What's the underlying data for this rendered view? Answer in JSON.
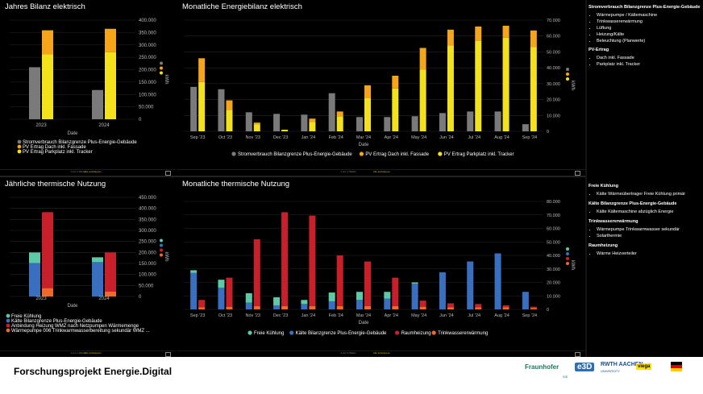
{
  "colors": {
    "grey": "#7a7a7a",
    "orange": "#f5a51a",
    "yellow": "#f3e11b",
    "mint": "#5ec9a7",
    "blue": "#3a6fc0",
    "red": "#c8202a",
    "lorange": "#ef6a28",
    "axis_text": "#bdbdbd",
    "grid": "#262626"
  },
  "footer": {
    "nav": "1 von 1   Weiter      ",
    "link": "Alle ausklappen"
  },
  "chart_data": [
    {
      "id": "jb",
      "type": "bar",
      "title": "Jahres Bilanz elektrisch",
      "categories": [
        "2023",
        "2024"
      ],
      "xlabel": "Date",
      "ylabel": "kWh",
      "ylim": [
        0,
        400000
      ],
      "yticks": [
        "0",
        "50.000",
        "100.000",
        "150.000",
        "200.000",
        "250.000",
        "300.000",
        "350.000",
        "400.000"
      ],
      "grouped": true,
      "groups": [
        {
          "bars": [
            {
              "series": "Stromverbrauch Bilanzgrenze Plus-Energie-Gebäude",
              "color": "grey",
              "values": [
                210000,
                118000
              ]
            }
          ]
        },
        {
          "bars": [
            {
              "series": "PV Ertrag Parkplatz inkl. Tracker",
              "color": "yellow",
              "values": [
                263000,
                271000
              ]
            },
            {
              "series": "PV Ertrag Dach inkl. Fassade",
              "color": "orange",
              "values": [
                96000,
                94000
              ]
            }
          ]
        }
      ],
      "legend": [
        {
          "label": "Stromverbrauch Bilanzgrenze Plus-Energie-Gebäude",
          "color": "grey"
        },
        {
          "label": "PV Ertrag Dach inkl. Fassade",
          "color": "orange"
        },
        {
          "label": "PV Ertrag Parkplatz inkl. Tracker",
          "color": "yellow"
        }
      ],
      "legend_position": "bottom-left"
    },
    {
      "id": "me",
      "type": "bar",
      "title": "Monatliche Energiebilanz elektrisch",
      "categories": [
        "Sep '23",
        "Oct '23",
        "Nov '23",
        "Dec '23",
        "Jan '24",
        "Feb '24",
        "Mar '24",
        "Apr '24",
        "May '24",
        "Jun '24",
        "Jul '24",
        "Aug '24",
        "Sep '24"
      ],
      "xlabel": "Date",
      "ylabel": "kWh",
      "ylim": [
        0,
        70000
      ],
      "yticks": [
        "0",
        "10.000",
        "20.000",
        "30.000",
        "40.000",
        "50.000",
        "60.000",
        "70.000"
      ],
      "grouped": true,
      "groups": [
        {
          "bars": [
            {
              "series": "Stromverbrauch Bilanzgrenze Plus-Energie-Gebäude",
              "color": "grey",
              "values": [
                28000,
                26500,
                12000,
                11000,
                10500,
                24000,
                9000,
                9000,
                9500,
                11500,
                12500,
                12500,
                4500
              ]
            }
          ]
        },
        {
          "bars": [
            {
              "series": "PV Ertrag Parkplatz inkl. Tracker",
              "color": "yellow",
              "values": [
                31000,
                13500,
                4500,
                1000,
                6000,
                9500,
                21000,
                27000,
                39000,
                54000,
                57000,
                59000,
                53000
              ]
            },
            {
              "series": "PV Ertrag Dach inkl. Fassade",
              "color": "orange",
              "values": [
                15000,
                6000,
                1000,
                0,
                2000,
                3000,
                8000,
                8000,
                13500,
                10000,
                9000,
                7500,
                10500
              ]
            }
          ]
        }
      ],
      "legend": [
        {
          "label": "Stromverbrauch Bilanzgrenze Plus-Energie-Gebäude",
          "color": "grey"
        },
        {
          "label": "PV Ertrag Dach inkl. Fassade",
          "color": "orange"
        },
        {
          "label": "PV Ertrag Parkplatz inkl. Tracker",
          "color": "yellow"
        }
      ],
      "legend_position": "bottom-center"
    },
    {
      "id": "jt",
      "type": "bar",
      "title": "Jährliche thermische Nutzung",
      "categories": [
        "2023",
        "2024"
      ],
      "xlabel": "Date",
      "ylabel": "kWh",
      "ylim": [
        0,
        450000
      ],
      "yticks": [
        "0",
        "50.000",
        "100.000",
        "150.000",
        "200.000",
        "250.000",
        "300.000",
        "350.000",
        "400.000",
        "450.000"
      ],
      "grouped": true,
      "groups": [
        {
          "bars": [
            {
              "series": "Kälte Bilanzgrenze Plus-Energie-Gebäude",
              "color": "blue",
              "values": [
                152000,
                156000
              ]
            },
            {
              "series": "Freie Kühlung",
              "color": "mint",
              "values": [
                48000,
                22000
              ]
            }
          ]
        },
        {
          "bars": [
            {
              "series": "Wärmepumpe 006 Trinkwarmwasserbereitung sekundär WMZ ...",
              "color": "lorange",
              "values": [
                38000,
                22000
              ]
            },
            {
              "series": "Anbindung Heizung WMZ nach Netzpumpen Wärmemenge",
              "color": "red",
              "values": [
                345000,
                178000
              ]
            }
          ]
        }
      ],
      "legend": [
        {
          "label": "Freie Kühlung",
          "color": "mint"
        },
        {
          "label": "Kälte Bilanzgrenze Plus-Energie-Gebäude",
          "color": "blue"
        },
        {
          "label": "Anbindung Heizung WMZ nach Netzpumpen Wärmemenge",
          "color": "red"
        },
        {
          "label": "Wärmepumpe 006 Trinkwarmwasserbereitung sekundär WMZ ...",
          "color": "lorange"
        }
      ],
      "legend_position": "bottom-left"
    },
    {
      "id": "mt",
      "type": "bar",
      "title": "Monatliche thermische Nutzung",
      "categories": [
        "Sep '23",
        "Oct '23",
        "Nov '23",
        "Dec '23",
        "Jan '24",
        "Feb '24",
        "Mar '24",
        "Apr '24",
        "May '24",
        "Jun '24",
        "Jul '24",
        "Aug '24",
        "Sep '24"
      ],
      "xlabel": "Date",
      "ylabel": "kWh",
      "ylim": [
        0,
        80000
      ],
      "yticks": [
        "0",
        "10.000",
        "20.000",
        "30.000",
        "40.000",
        "50.000",
        "60.000",
        "70.000",
        "80.000"
      ],
      "grouped": true,
      "groups": [
        {
          "bars": [
            {
              "series": "Kälte Bilanzgrenze Plus-Energie-Gebäude",
              "color": "blue",
              "values": [
                27000,
                16000,
                5000,
                3000,
                4000,
                6000,
                7000,
                8000,
                19000,
                27500,
                35500,
                41500,
                13000
              ]
            },
            {
              "series": "Freie Kühlung",
              "color": "mint",
              "values": [
                2000,
                6000,
                7000,
                6000,
                3000,
                6500,
                6000,
                5000,
                1000,
                0,
                0,
                0,
                0
              ]
            }
          ]
        },
        {
          "bars": [
            {
              "series": "Trinkwassererwärmung",
              "color": "lorange",
              "values": [
                1500,
                2000,
                2500,
                2500,
                2500,
                2500,
                2500,
                2500,
                2000,
                1500,
                1500,
                1500,
                1000
              ]
            },
            {
              "series": "Raumheizung",
              "color": "red",
              "values": [
                5500,
                21500,
                49500,
                69500,
                67000,
                37500,
                33000,
                21000,
                4500,
                3000,
                2500,
                1500,
                1000
              ]
            }
          ]
        }
      ],
      "legend": [
        {
          "label": "Freie Kühlung",
          "color": "mint"
        },
        {
          "label": "Kälte Bilanzgrenze Plus-Energie-Gebäude",
          "color": "blue"
        },
        {
          "label": "Raumheizung",
          "color": "red"
        },
        {
          "label": "Trinkwassererwärmung",
          "color": "lorange"
        }
      ],
      "legend_position": "bottom-center"
    }
  ],
  "side_top": [
    {
      "heading": "Stromverbrauch Bilanzgrenze Plus-Energie-Gebäude",
      "items": [
        "Wärmepumpe / Kältemaschine",
        "Trinkwassererwärmung",
        "Lüftung",
        "Heizung/Kälte",
        "Beleuchtung (Planwerte)"
      ]
    },
    {
      "heading": "PV-Ertrag",
      "items": [
        "Dach inkl. Fassade",
        "Parkplatz inkl. Tracker"
      ]
    }
  ],
  "side_bottom": [
    {
      "heading": "Freie Kühlung",
      "items": [
        "Kälte Wärmeübertrager Freie Kühlung primär"
      ]
    },
    {
      "heading": "Kälte Bilanzgrenze Plus-Energie-Gebäude",
      "items": [
        "Kälte Kältemaschine abzüglich Energie"
      ]
    },
    {
      "heading": "Trinkwassererwärmung",
      "items": [
        "Wärmepumpe Trinkwarmwasser sekundär",
        "Solarthermie"
      ]
    },
    {
      "heading": "Raumheizung",
      "items": [
        "Wärme Heizverteiler"
      ]
    }
  ],
  "bottom": {
    "title": "Forschungsprojekt Energie.Digital",
    "logos": {
      "fraunhofer": "Fraunhofer",
      "fraunhofer_sub": "ISE",
      "e3d": "e3D",
      "rwth": "RWTH AACHEN",
      "rwth_sub": "UNIVERSITY",
      "viega": "viega"
    }
  }
}
